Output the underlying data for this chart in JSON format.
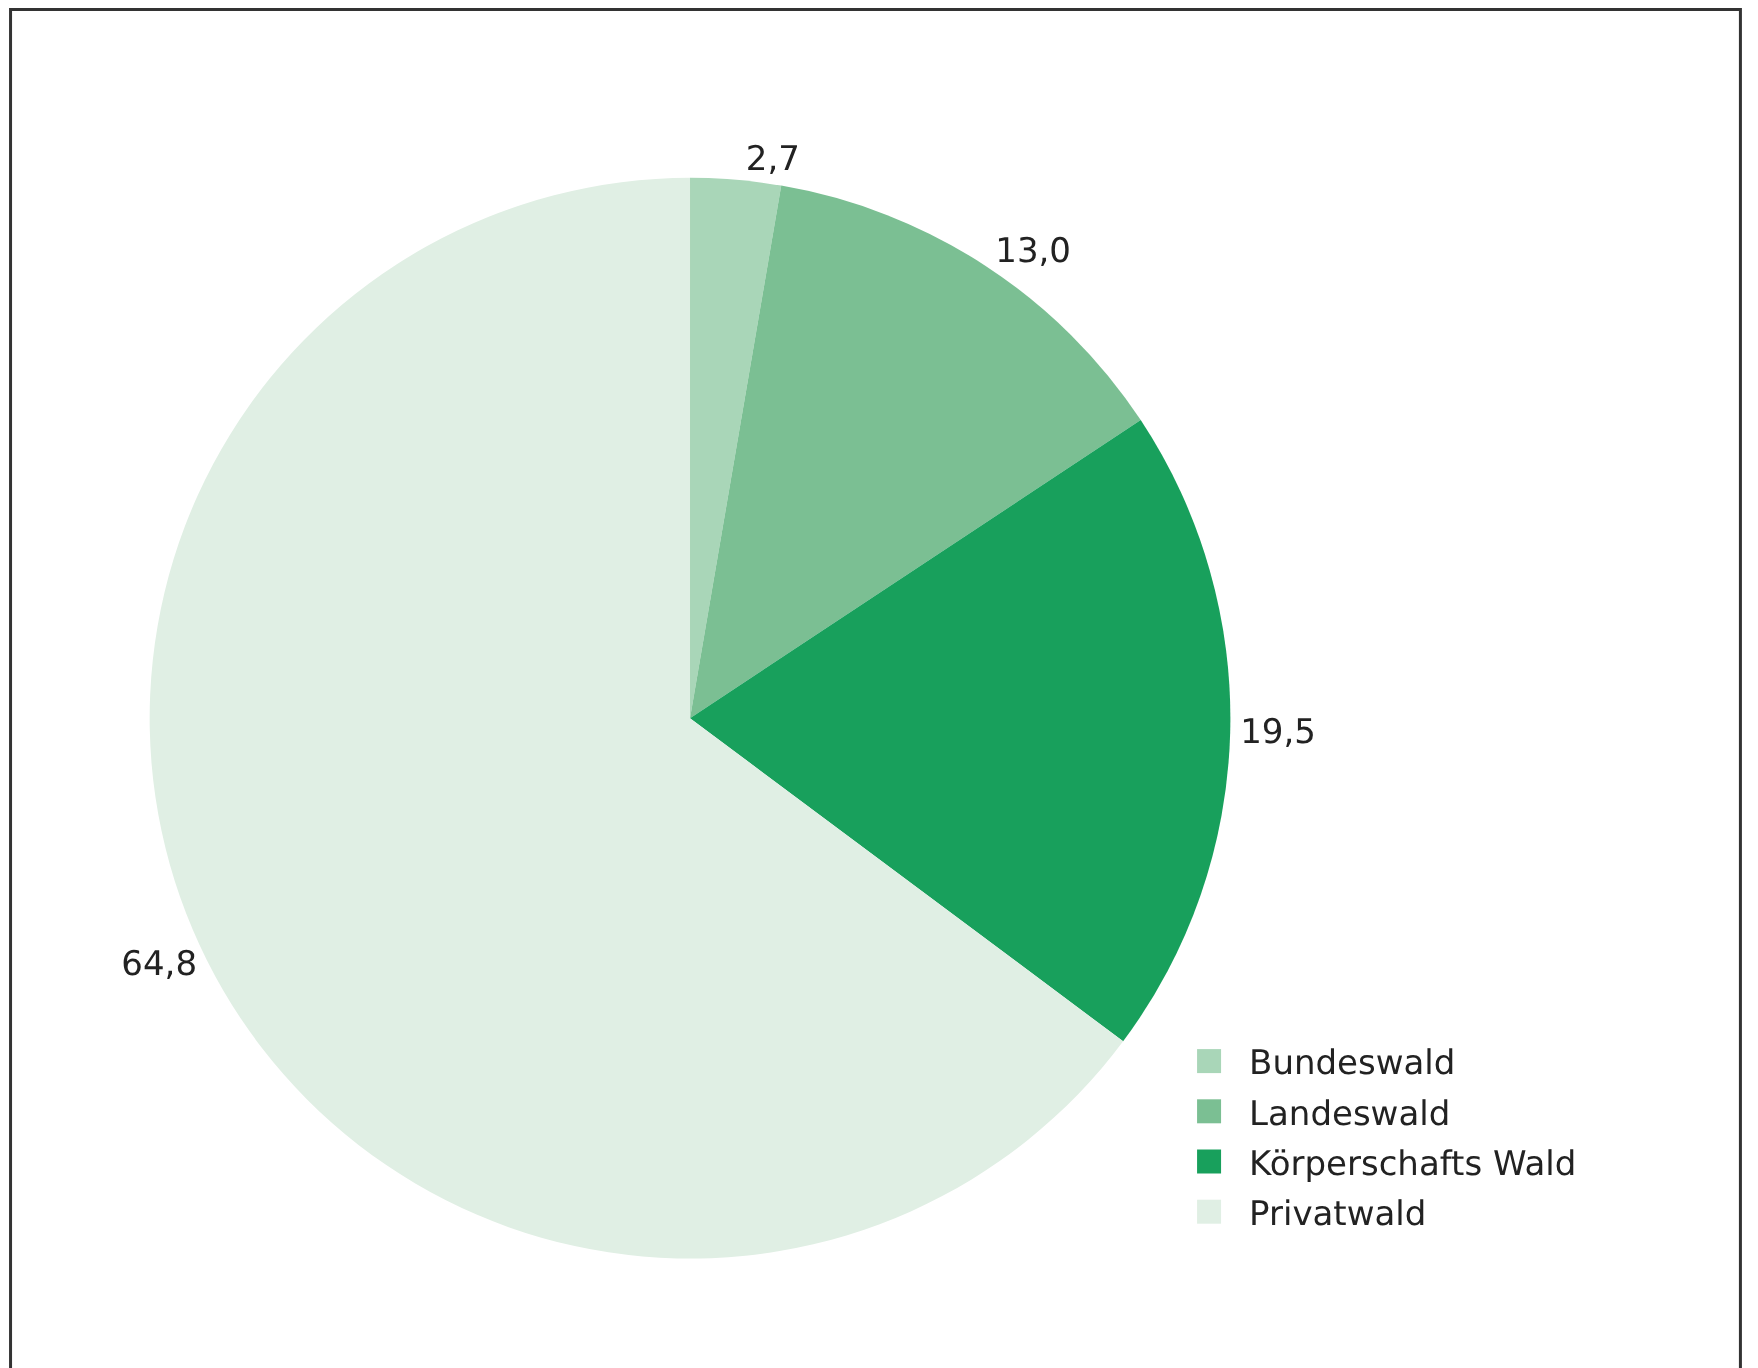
{
  "chart_data": {
    "type": "pie",
    "categories": [
      "Bundeswald",
      "Landeswald",
      "Körperschafts Wald",
      "Privatwald"
    ],
    "values": [
      2.7,
      13.0,
      19.5,
      64.8
    ],
    "value_labels": [
      "2,7",
      "13,0",
      "19,5",
      "64,8"
    ],
    "colors": [
      "#a9d6b8",
      "#7bbf93",
      "#18a05c",
      "#e0efe4"
    ],
    "legend": "bottom right"
  }
}
